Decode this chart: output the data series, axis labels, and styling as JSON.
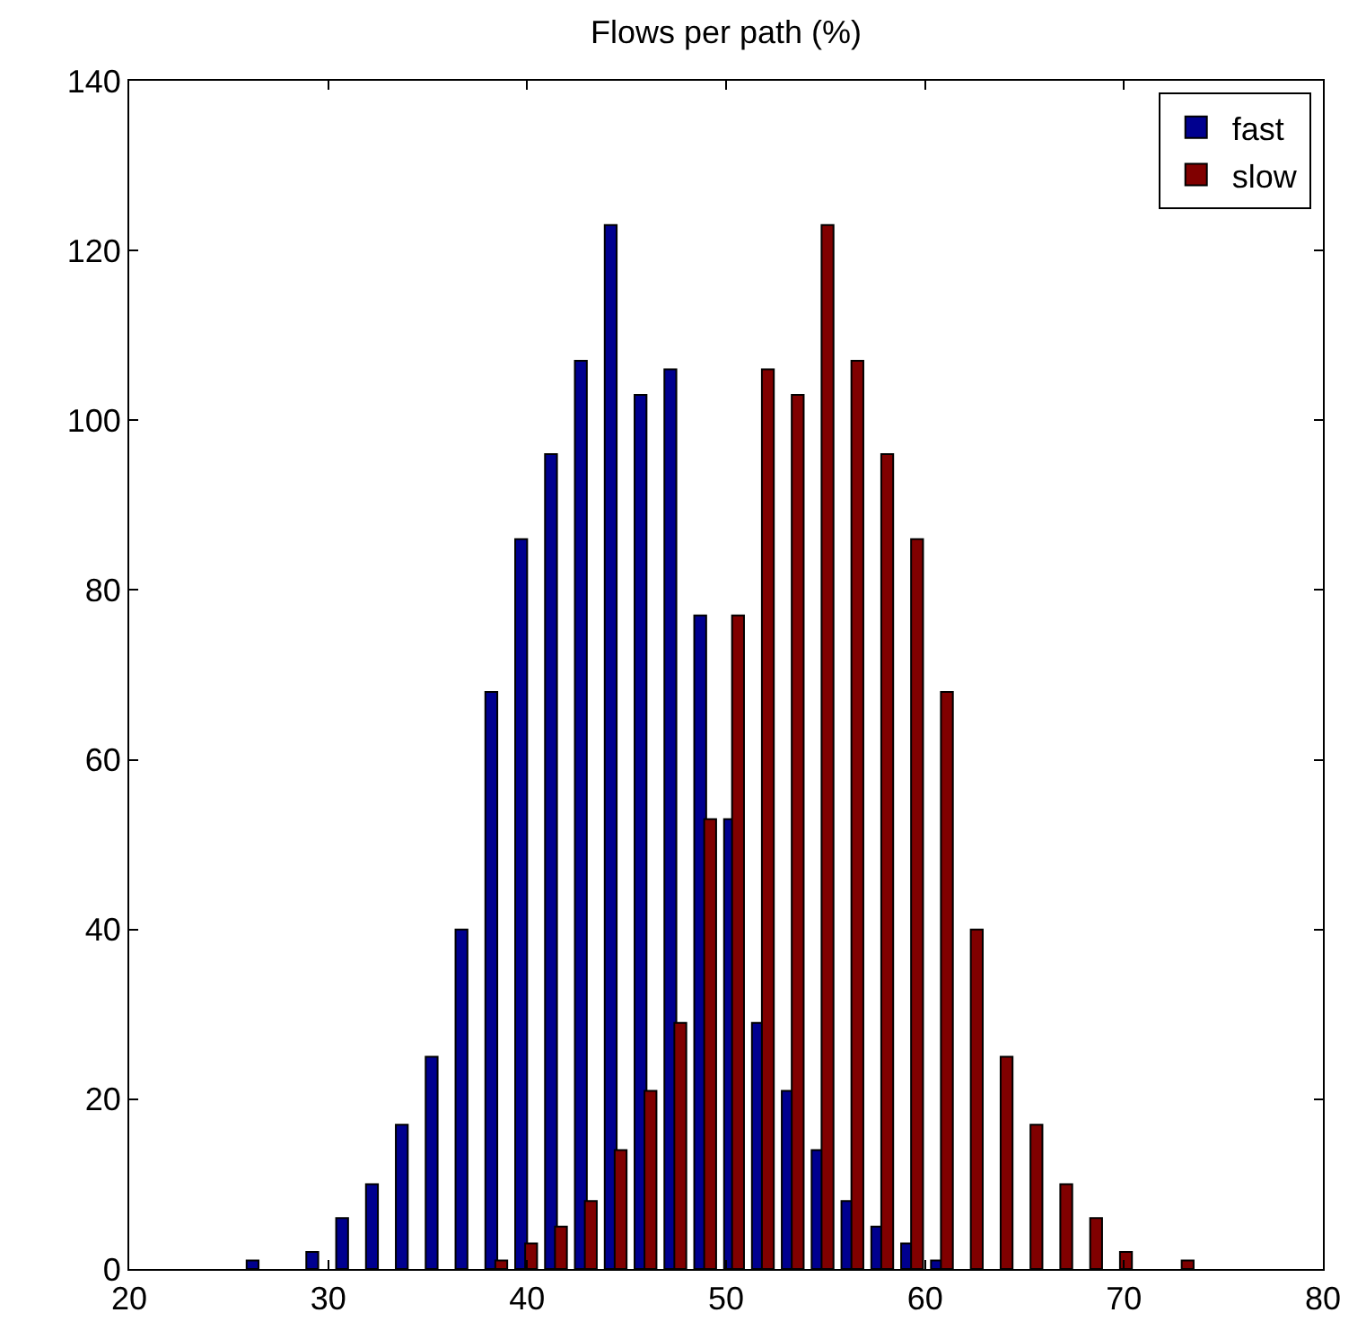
{
  "chart_data": {
    "type": "bar",
    "title": "Flows per path (%)",
    "series": [
      {
        "name": "fast",
        "color": "#00008f",
        "x": [
          26.2,
          29.2,
          30.7,
          32.2,
          33.7,
          35.2,
          36.7,
          38.2,
          39.7,
          41.2,
          42.7,
          44.2,
          45.7,
          47.2,
          48.7,
          50.2,
          51.6,
          53.1,
          54.6,
          56.1,
          57.6,
          59.1,
          60.6
        ],
        "values": [
          1,
          2,
          6,
          10,
          17,
          25,
          40,
          68,
          86,
          96,
          107,
          123,
          103,
          106,
          77,
          53,
          29,
          21,
          14,
          8,
          5,
          3,
          1
        ]
      },
      {
        "name": "slow",
        "color": "#800000",
        "x": [
          38.7,
          40.2,
          41.7,
          43.2,
          44.7,
          46.2,
          47.7,
          49.2,
          50.6,
          52.1,
          53.6,
          55.1,
          56.6,
          58.1,
          59.6,
          61.1,
          62.6,
          64.1,
          65.6,
          67.1,
          68.6,
          70.1,
          73.2
        ],
        "values": [
          1,
          3,
          5,
          8,
          14,
          21,
          29,
          53,
          77,
          106,
          103,
          123,
          107,
          96,
          86,
          68,
          40,
          25,
          17,
          10,
          6,
          2,
          1
        ]
      }
    ],
    "xlim": [
      20,
      80
    ],
    "xticks": [
      20,
      30,
      40,
      50,
      60,
      70,
      80
    ],
    "ylim": [
      0,
      140
    ],
    "yticks": [
      0,
      20,
      40,
      60,
      80,
      100,
      120,
      140
    ],
    "legend": "top right"
  }
}
